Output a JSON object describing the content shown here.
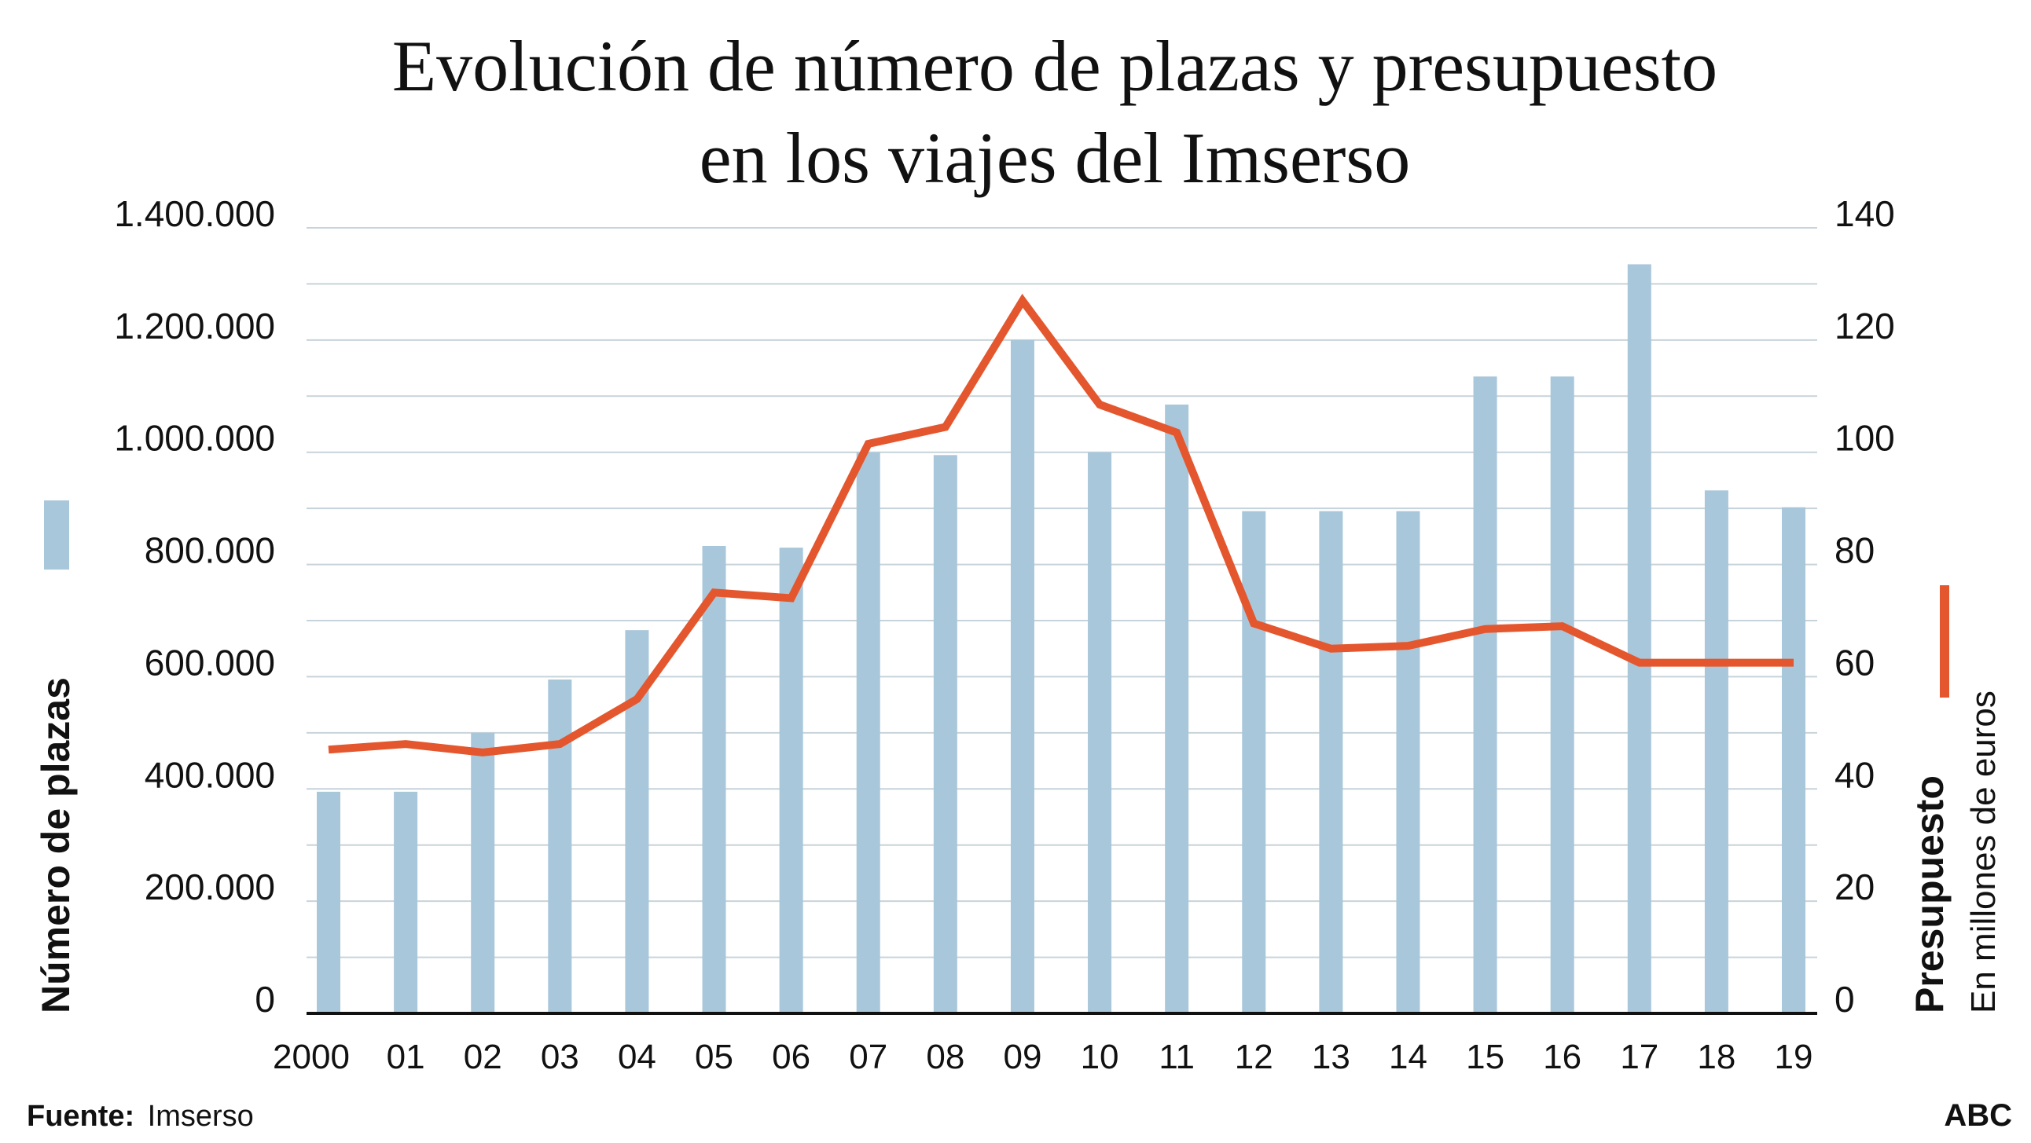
{
  "chart_data": {
    "type": "bar",
    "title_lines": [
      "Evolución de número de plazas y presupuesto",
      "en los viajes del Imserso"
    ],
    "categories": [
      "2000",
      "01",
      "02",
      "03",
      "04",
      "05",
      "06",
      "07",
      "08",
      "09",
      "10",
      "11",
      "12",
      "13",
      "14",
      "15",
      "16",
      "17",
      "18",
      "19"
    ],
    "series": [
      {
        "name": "Número de plazas",
        "kind": "bar",
        "axis": "left",
        "color": "#a9c7da",
        "values": [
          395000,
          395000,
          500000,
          595000,
          683000,
          833000,
          830000,
          1000000,
          995000,
          1200000,
          1000000,
          1085000,
          895000,
          895000,
          895000,
          1135000,
          1135000,
          1335000,
          932000,
          902000
        ]
      },
      {
        "name": "Presupuesto",
        "subtitle": "En millones de euros",
        "kind": "line",
        "axis": "right",
        "color": "#e4572e",
        "values": [
          47,
          48,
          46.5,
          48,
          56,
          75,
          74,
          101.5,
          104.5,
          127,
          108.5,
          103.5,
          69.5,
          65,
          65.5,
          68.5,
          69,
          62.5,
          62.5,
          62.5
        ]
      }
    ],
    "y_left": {
      "label": "Número de plazas",
      "ylim": [
        0,
        1400000
      ],
      "ticks": [
        0,
        200000,
        400000,
        600000,
        800000,
        1000000,
        1200000,
        1400000
      ],
      "tick_labels": [
        "0",
        "200.000",
        "400.000",
        "600.000",
        "800.000",
        "1.000.000",
        "1.200.000",
        "1.400.000"
      ]
    },
    "y_right": {
      "label": "Presupuesto",
      "sublabel": "En millones de euros",
      "ylim": [
        0,
        140
      ],
      "ticks": [
        0,
        20,
        40,
        60,
        80,
        100,
        120,
        140
      ],
      "tick_labels": [
        "0",
        "20",
        "40",
        "60",
        "80",
        "100",
        "120",
        "140"
      ]
    },
    "grid": true,
    "grid_step_right": 10
  },
  "footer": {
    "source_label": "Fuente:",
    "source": "Imserso",
    "brand": "ABC"
  }
}
